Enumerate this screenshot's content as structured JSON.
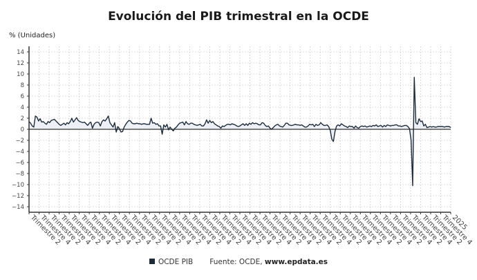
{
  "title": "Evolución del PIB trimestral en la OCDE",
  "y_axis_label": "% (Unidades)",
  "legend": {
    "series_label": "OCDE PIB",
    "source_prefix": "Fuente: OCDE, ",
    "source_site": "www.epdata.es"
  },
  "colors": {
    "line": "#1c2b3a",
    "fill": "#e8eef5",
    "grid": "#cfcfcf",
    "axis": "#333333"
  },
  "chart_data": {
    "type": "line",
    "title": "Evolución del PIB trimestral en la OCDE",
    "xlabel": "",
    "ylabel": "% (Unidades)",
    "ylim": [
      -15,
      15
    ],
    "yticks": [
      14,
      12,
      10,
      8,
      6,
      4,
      2,
      0,
      -2,
      -4,
      -6,
      -8,
      -10,
      -12,
      -14
    ],
    "grid": true,
    "legend_position": "bottom",
    "x_tick_labels_pattern": [
      "Trimestre 2",
      "Trimestre 4"
    ],
    "x_tick_count": 42,
    "x_last_label": "2025",
    "series": [
      {
        "name": "OCDE PIB",
        "values": [
          1.4,
          1.1,
          0.6,
          0.4,
          2.4,
          2.2,
          1.5,
          1.9,
          1.3,
          1.4,
          1.1,
          0.9,
          1.4,
          1.2,
          1.6,
          1.7,
          1.8,
          1.5,
          1.2,
          0.9,
          0.7,
          0.9,
          1.1,
          0.8,
          1.2,
          1.0,
          1.4,
          2.0,
          1.3,
          1.7,
          2.1,
          1.6,
          1.4,
          1.3,
          1.2,
          1.3,
          1.0,
          0.7,
          1.1,
          1.3,
          0.2,
          0.9,
          1.2,
          1.3,
          1.2,
          0.6,
          1.4,
          1.7,
          1.5,
          1.9,
          2.4,
          1.2,
          0.8,
          0.4,
          1.2,
          -0.5,
          0.5,
          0.1,
          -0.5,
          -0.4,
          0.4,
          0.9,
          1.3,
          1.6,
          1.5,
          1.1,
          1.0,
          1.0,
          1.1,
          1.0,
          1.0,
          0.9,
          1.0,
          1.0,
          0.9,
          0.9,
          0.9,
          2.0,
          1.1,
          1.2,
          0.9,
          1.0,
          0.6,
          0.6,
          -0.9,
          0.8,
          0.4,
          0.9,
          -0.1,
          0.4,
          0.0,
          -0.3,
          0.2,
          0.4,
          0.8,
          1.1,
          1.2,
          1.3,
          0.8,
          1.4,
          1.0,
          0.9,
          1.1,
          1.1,
          0.9,
          0.8,
          0.7,
          0.8,
          0.9,
          0.6,
          0.6,
          1.0,
          1.7,
          1.1,
          1.6,
          1.2,
          1.4,
          1.0,
          0.8,
          0.6,
          0.5,
          0.2,
          0.6,
          0.5,
          0.7,
          0.9,
          0.9,
          0.8,
          1.0,
          0.9,
          0.8,
          0.6,
          0.5,
          0.6,
          0.8,
          1.0,
          0.7,
          1.0,
          0.7,
          1.1,
          0.9,
          1.2,
          1.0,
          1.1,
          1.0,
          0.8,
          0.8,
          1.2,
          1.1,
          0.7,
          0.5,
          0.6,
          0.2,
          0.0,
          0.3,
          0.6,
          0.8,
          0.9,
          0.6,
          0.5,
          0.4,
          0.7,
          1.1,
          1.1,
          0.8,
          0.7,
          0.7,
          0.8,
          0.9,
          0.8,
          0.8,
          0.7,
          0.8,
          0.6,
          0.4,
          0.4,
          0.6,
          0.9,
          0.8,
          0.9,
          0.5,
          0.9,
          0.7,
          0.8,
          1.2,
          0.9,
          0.7,
          0.7,
          0.8,
          0.5,
          -0.2,
          -1.8,
          -2.2,
          -0.4,
          0.6,
          0.8,
          0.6,
          1.0,
          0.8,
          0.6,
          0.5,
          0.3,
          0.6,
          0.5,
          0.5,
          0.2,
          0.6,
          0.3,
          0.2,
          0.5,
          0.6,
          0.5,
          0.6,
          0.4,
          0.5,
          0.6,
          0.5,
          0.7,
          0.6,
          0.8,
          0.5,
          0.6,
          0.7,
          0.4,
          0.7,
          0.5,
          0.8,
          0.7,
          0.6,
          0.7,
          0.7,
          0.8,
          0.8,
          0.6,
          0.6,
          0.5,
          0.6,
          0.7,
          0.7,
          0.5,
          0.1,
          -2.0,
          -10.2,
          9.4,
          1.2,
          0.9,
          1.9,
          1.4,
          1.5,
          0.6,
          0.9,
          0.3,
          0.4,
          0.5,
          0.4,
          0.5,
          0.4,
          0.4,
          0.5,
          0.5,
          0.5,
          0.5,
          0.4,
          0.5,
          0.5,
          0.5,
          0.3
        ]
      }
    ]
  }
}
